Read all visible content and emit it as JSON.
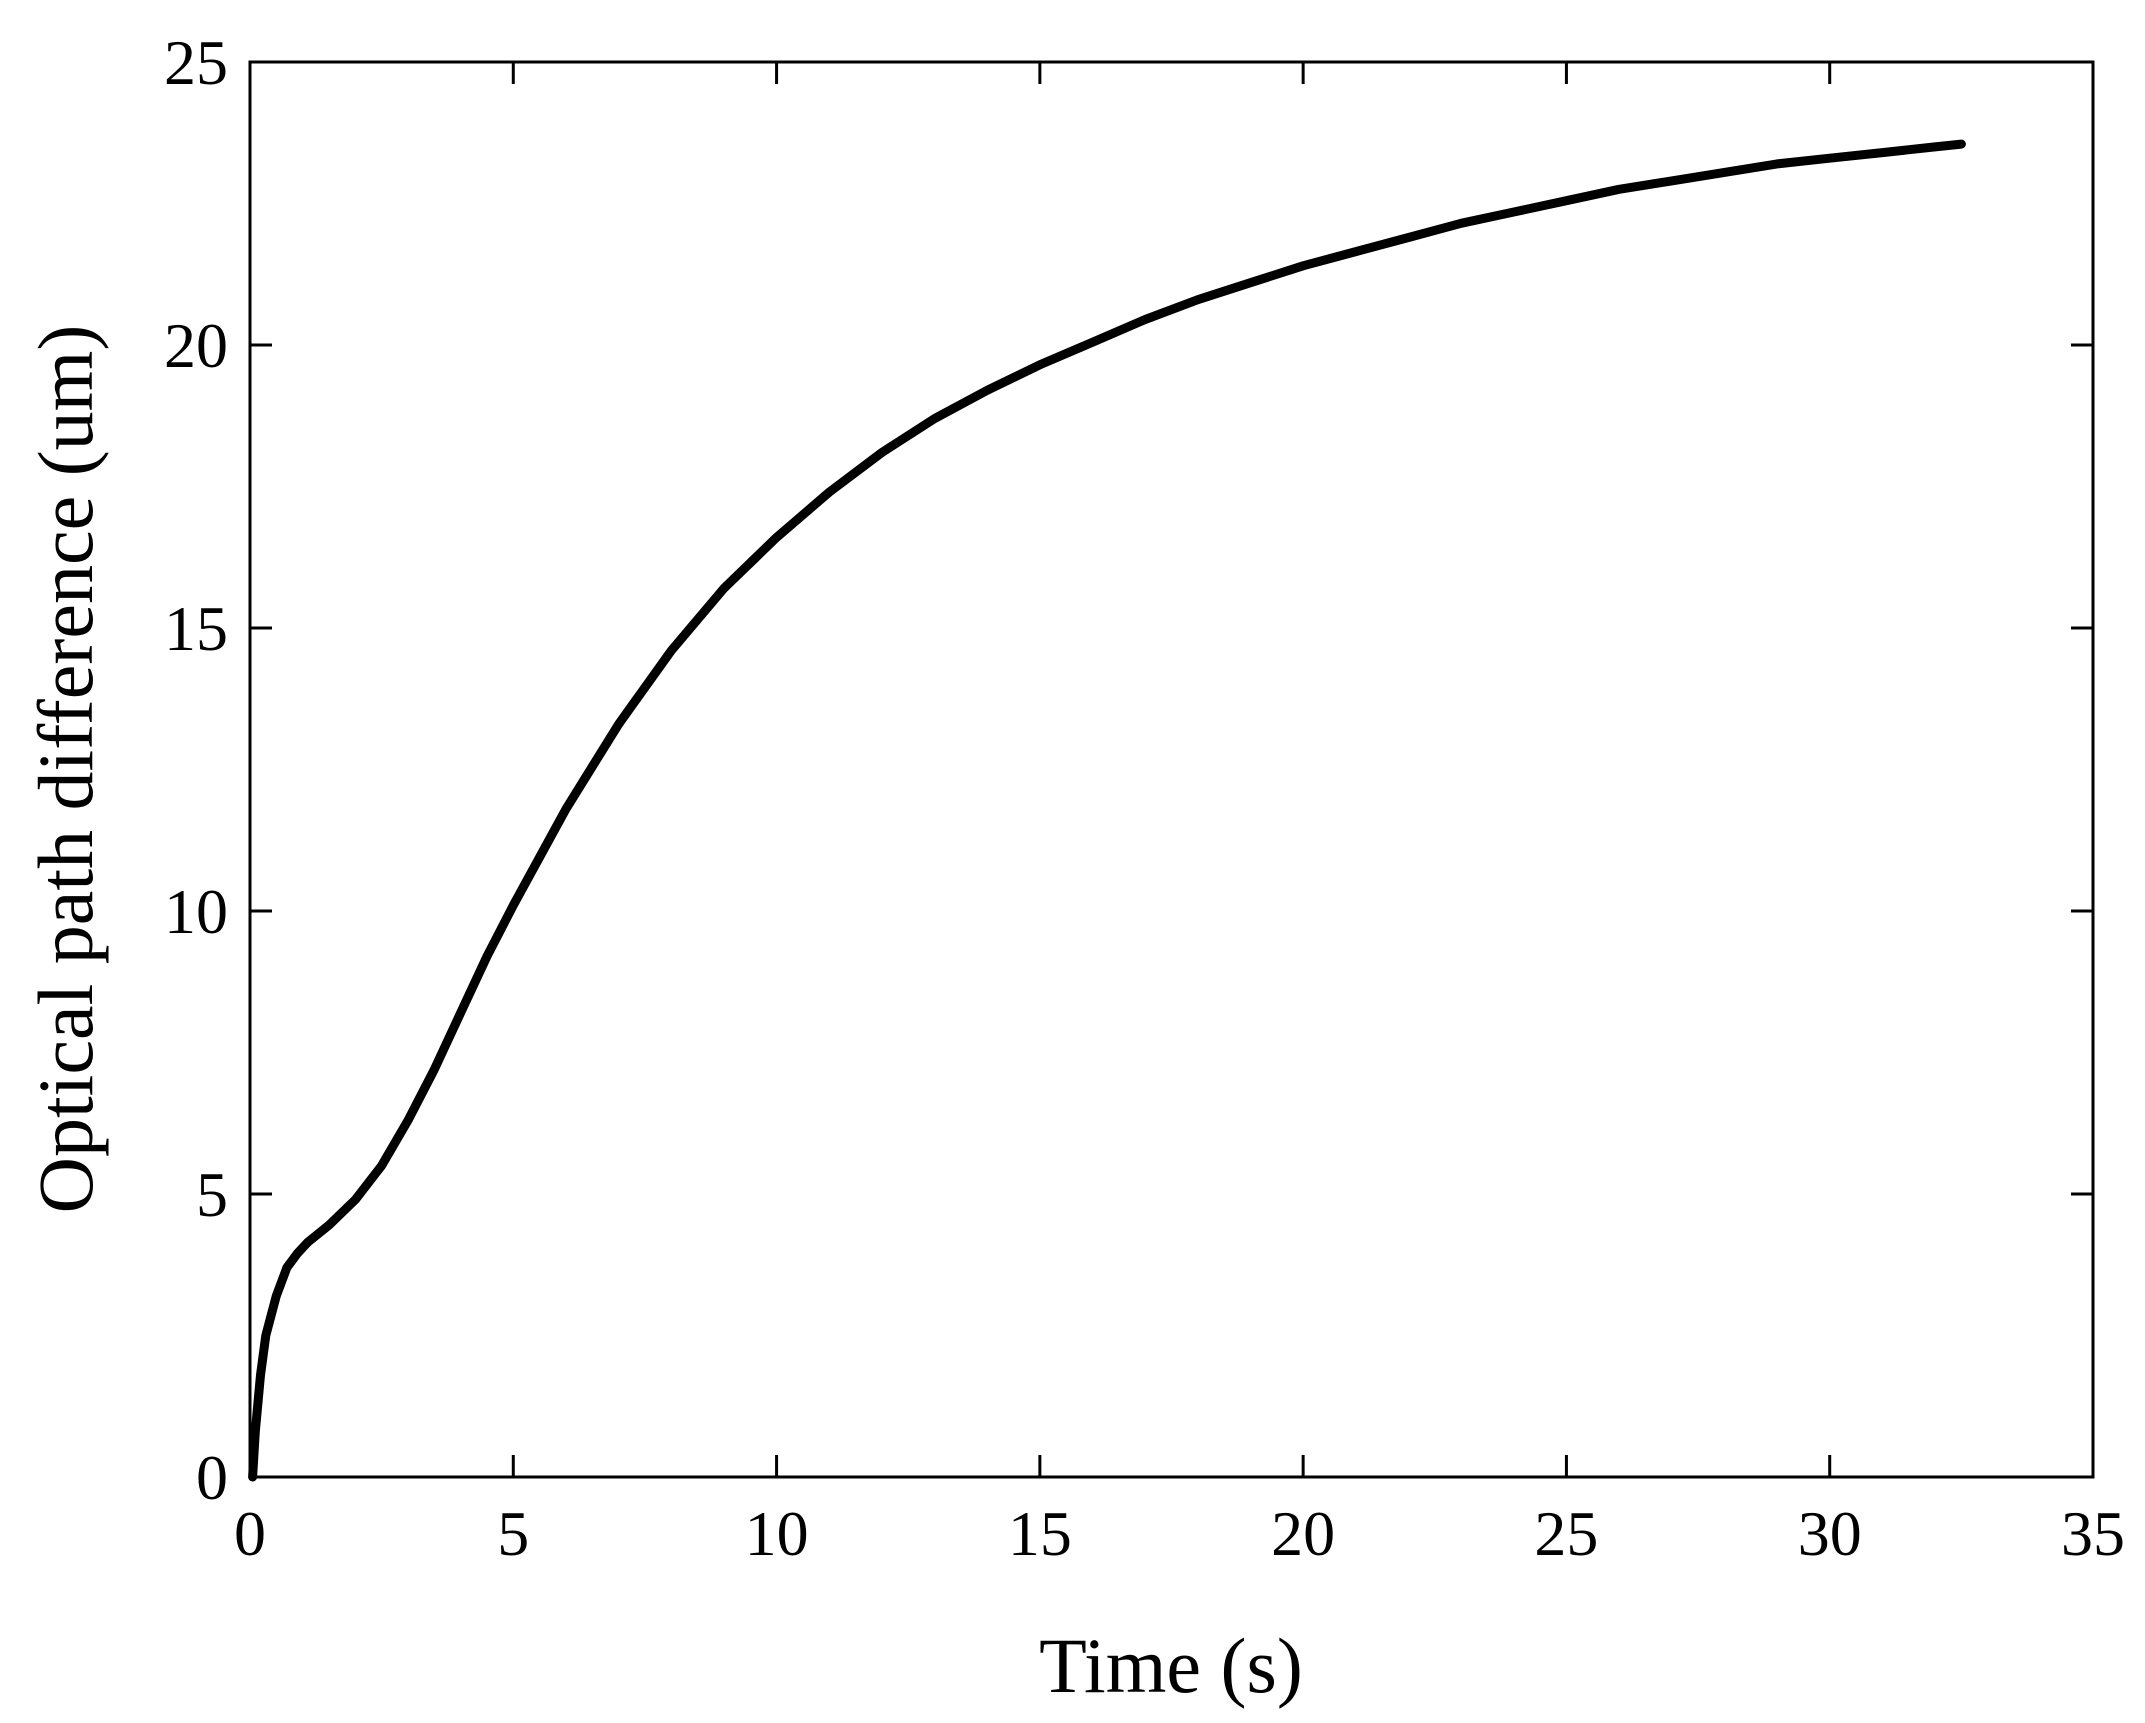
{
  "chart_data": {
    "type": "line",
    "xlabel": "Time (s)",
    "ylabel": "Optical path difference (um)",
    "xlim": [
      0,
      35
    ],
    "ylim": [
      0,
      25
    ],
    "xticks": [
      0,
      5,
      10,
      15,
      20,
      25,
      30,
      35
    ],
    "yticks": [
      0,
      5,
      10,
      15,
      20,
      25
    ],
    "grid": false,
    "line_color": "#000000",
    "series": [
      {
        "x": [
          0.05,
          0.1,
          0.2,
          0.3,
          0.5,
          0.7,
          0.9,
          1.1,
          1.5,
          2.0,
          2.5,
          3.0,
          3.5,
          4.0,
          4.5,
          5.0,
          6.0,
          7.0,
          8.0,
          9.0,
          10.0,
          11.0,
          12.0,
          13.0,
          14.0,
          15.0,
          16.0,
          17.0,
          18.0,
          19.0,
          20.0,
          21.0,
          22.0,
          23.0,
          24.0,
          25.0,
          26.0,
          27.0,
          28.0,
          29.0,
          30.0,
          31.0,
          32.0,
          32.5
        ],
        "y": [
          0.0,
          0.8,
          1.8,
          2.5,
          3.2,
          3.7,
          3.95,
          4.15,
          4.45,
          4.9,
          5.5,
          6.3,
          7.2,
          8.2,
          9.2,
          10.1,
          11.8,
          13.3,
          14.6,
          15.7,
          16.6,
          17.4,
          18.1,
          18.7,
          19.2,
          19.65,
          20.05,
          20.45,
          20.8,
          21.1,
          21.4,
          21.65,
          21.9,
          22.15,
          22.35,
          22.55,
          22.75,
          22.9,
          23.05,
          23.2,
          23.3,
          23.4,
          23.5,
          23.55
        ]
      }
    ]
  }
}
